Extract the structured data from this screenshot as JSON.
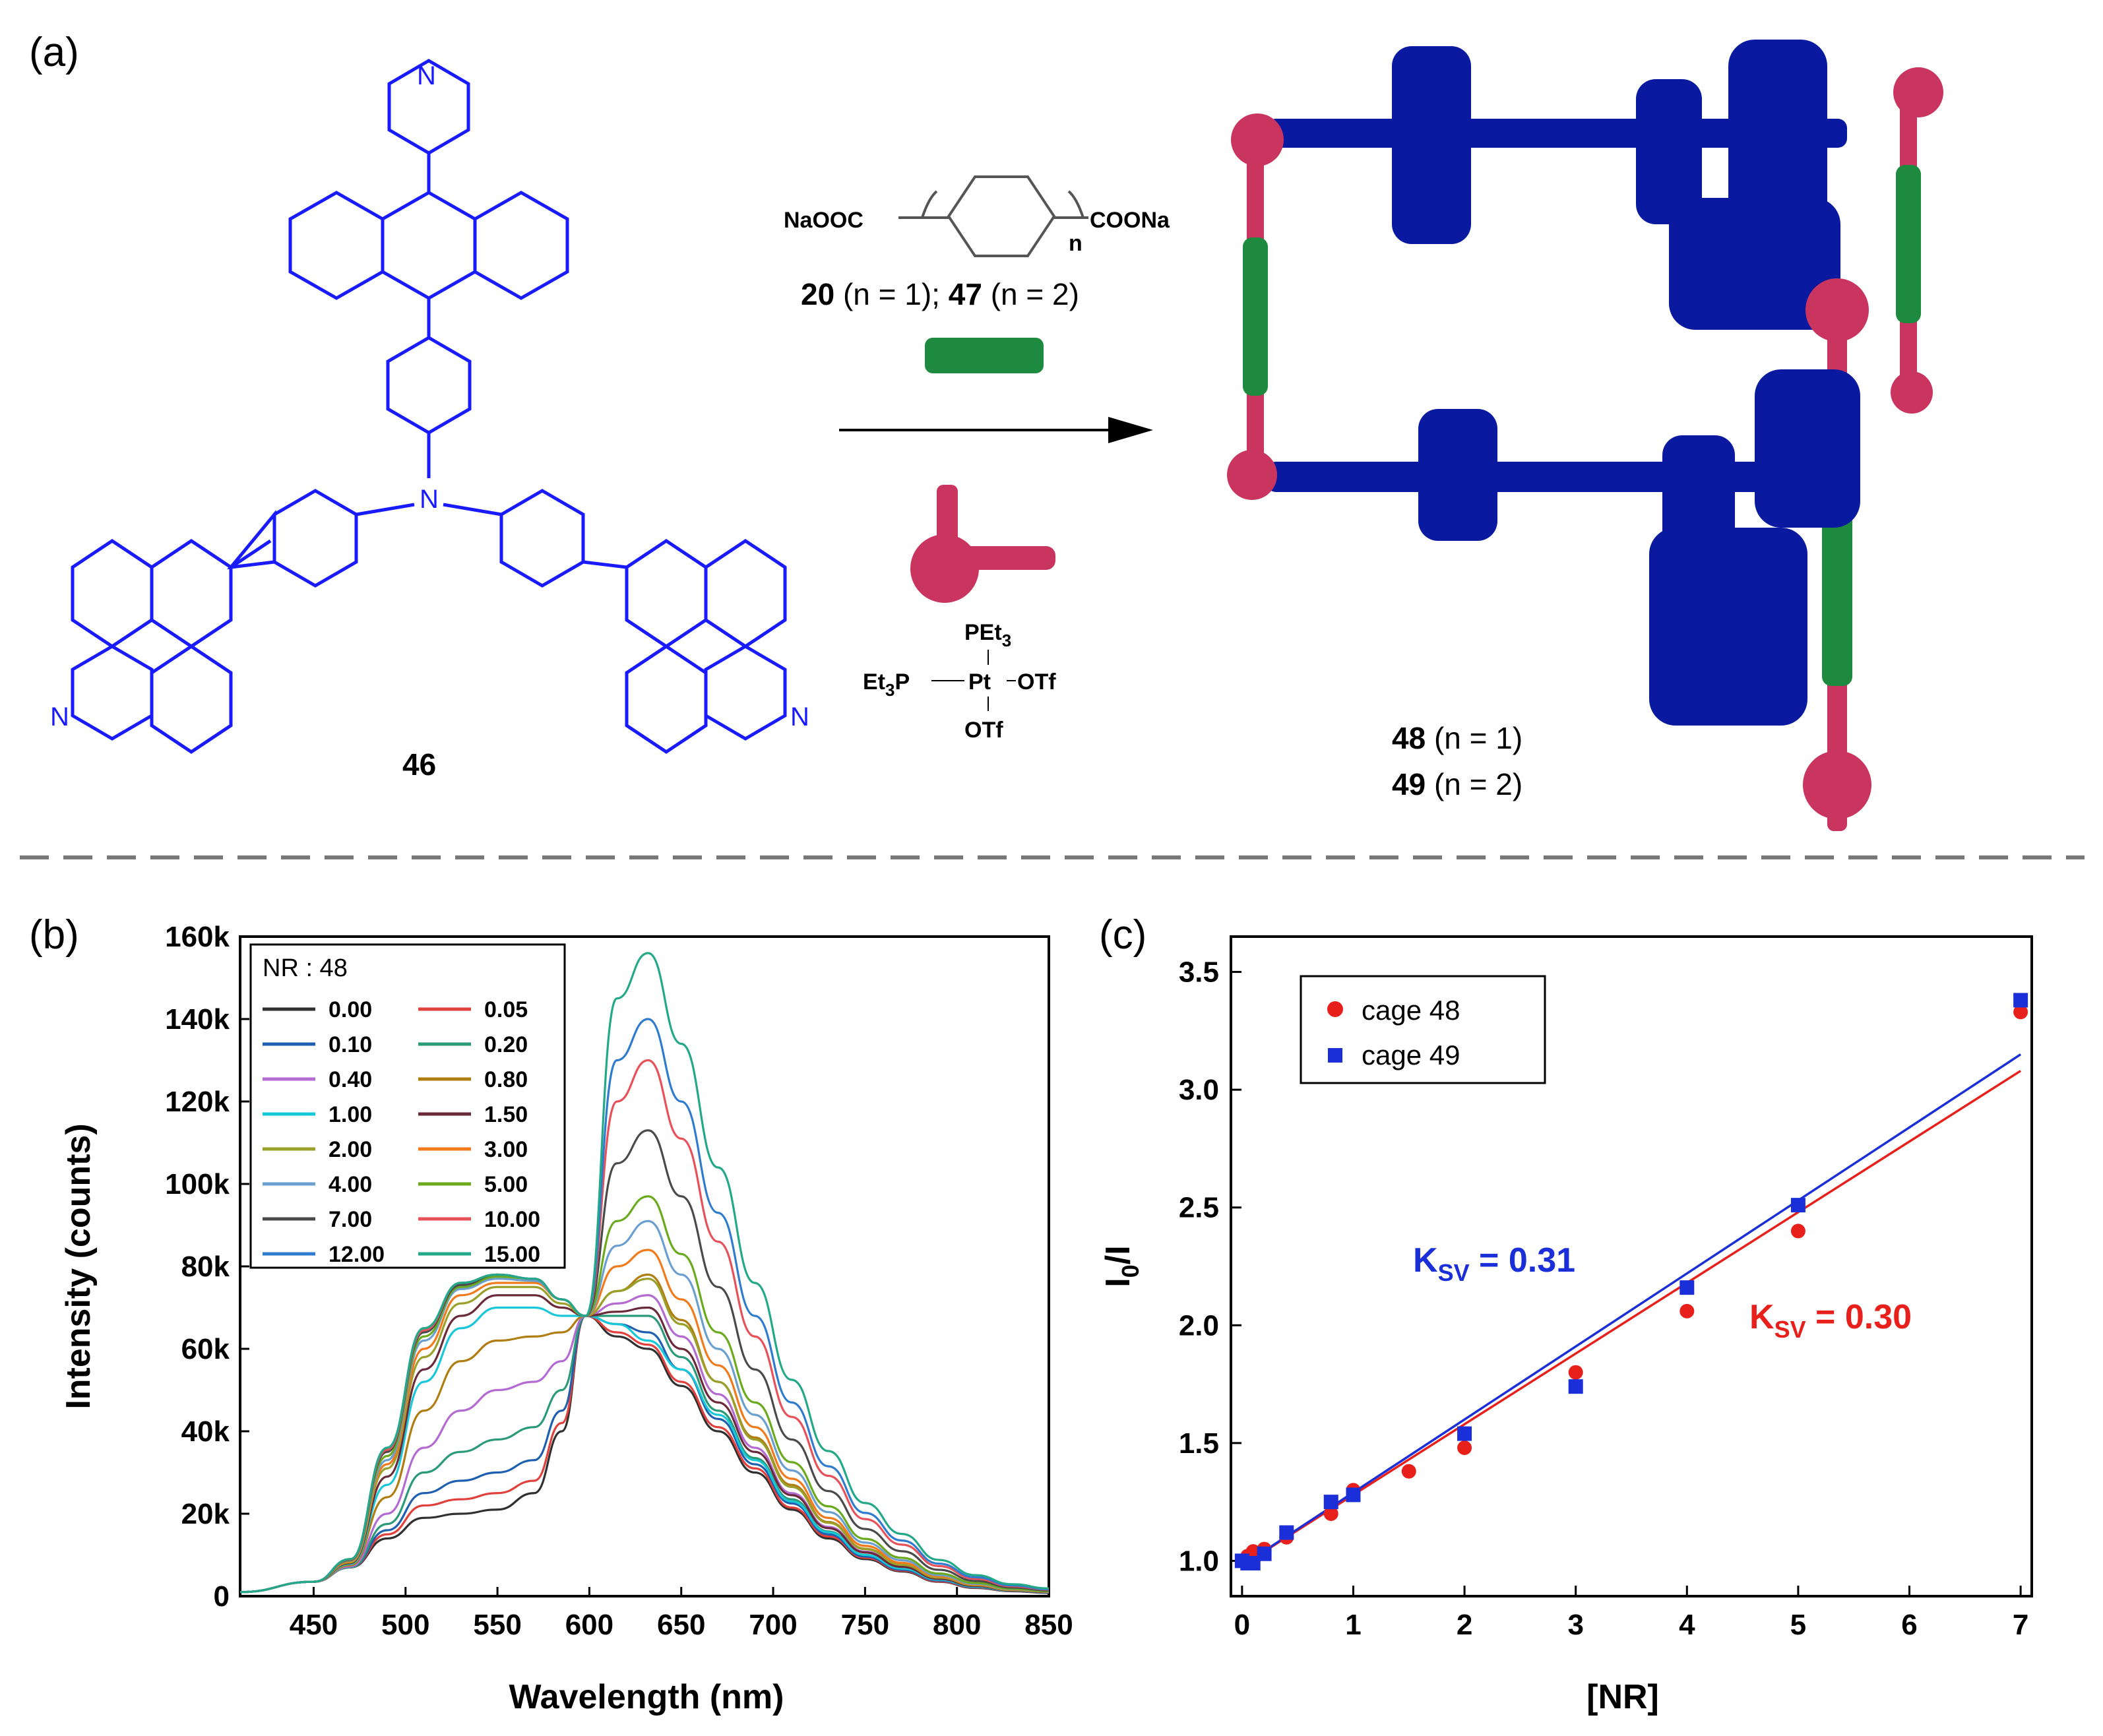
{
  "panels": {
    "a": "(a)",
    "b": "(b)",
    "c": "(c)"
  },
  "scheme": {
    "ligand_label": "46",
    "reagent_formula_left": "NaOOC",
    "reagent_formula_right": "COONa",
    "reagent_subscript": "n",
    "reagent_id_1": "20",
    "reagent_cond_1": " (n = 1); ",
    "reagent_id_2": "47",
    "reagent_cond_2": " (n = 2)",
    "pt_top": "PEt",
    "pt_top_sub": "3",
    "pt_left": "Et",
    "pt_left_sub": "3",
    "pt_left_tail": "P",
    "pt_center": "Pt",
    "pt_right": "OTf",
    "pt_bottom": "OTf",
    "product_id_1": "48",
    "product_cond_1": " (n = 1)",
    "product_id_2": "49",
    "product_cond_2": " (n = 2)",
    "atom_N": "N",
    "colors": {
      "ligand": "#1a1aff",
      "cage_blue": "#0a1aa0",
      "cage_green": "#1d8a3f",
      "cage_pink": "#c9355f"
    }
  },
  "chart_data": [
    {
      "type": "line",
      "panel": "(b)",
      "xlabel": "Wavelength (nm)",
      "ylabel": "Intensity (counts)",
      "xlim": [
        410,
        850
      ],
      "ylim": [
        0,
        160000
      ],
      "x_ticks": [
        "450",
        "500",
        "550",
        "600",
        "650",
        "700",
        "750",
        "800",
        "850"
      ],
      "y_ticks": [
        "0",
        "20k",
        "40k",
        "60k",
        "80k",
        "100k",
        "120k",
        "140k",
        "160k"
      ],
      "legend_title": "NR : 48",
      "legend_placement": "top-left",
      "isosbestic_point": [
        598,
        68000
      ],
      "x": [
        410,
        450,
        470,
        490,
        510,
        530,
        550,
        570,
        585,
        598,
        615,
        632,
        650,
        670,
        690,
        710,
        730,
        750,
        770,
        790,
        810,
        830,
        850
      ],
      "series": [
        {
          "name": "0.00",
          "color": "#303030",
          "values": [
            1000,
            3500,
            7000,
            14000,
            19000,
            20000,
            21000,
            25000,
            40000,
            68000,
            63000,
            60000,
            51000,
            40000,
            30000,
            21000,
            14000,
            9000,
            6000,
            3500,
            2000,
            1200,
            800
          ]
        },
        {
          "name": "0.05",
          "color": "#e0413c",
          "values": [
            1000,
            3500,
            7000,
            15000,
            22000,
            23500,
            25000,
            28000,
            42000,
            68000,
            64000,
            61000,
            52000,
            41000,
            31000,
            21500,
            14500,
            9300,
            6200,
            3600,
            2100,
            1250,
            850
          ]
        },
        {
          "name": "0.10",
          "color": "#1f5fb0",
          "values": [
            1000,
            3500,
            7000,
            16000,
            25000,
            28000,
            30000,
            33000,
            45000,
            68000,
            66000,
            64000,
            55000,
            43000,
            32000,
            22500,
            15000,
            9600,
            6400,
            3800,
            2200,
            1300,
            900
          ]
        },
        {
          "name": "0.20",
          "color": "#2a9a78",
          "values": [
            1000,
            3500,
            7000,
            17500,
            30000,
            35000,
            38000,
            41000,
            50000,
            68000,
            68000,
            68000,
            58000,
            45000,
            33500,
            23500,
            15700,
            10000,
            6700,
            4000,
            2300,
            1350,
            950
          ]
        },
        {
          "name": "0.40",
          "color": "#b36ad1",
          "values": [
            1000,
            3500,
            7200,
            20000,
            36000,
            45000,
            50000,
            52000,
            57000,
            68000,
            71000,
            73000,
            63000,
            49000,
            36000,
            25000,
            16800,
            10800,
            7200,
            4300,
            2500,
            1450,
            1000
          ]
        },
        {
          "name": "0.80",
          "color": "#b07d10",
          "values": [
            1000,
            3500,
            7500,
            24000,
            45000,
            57000,
            62000,
            63000,
            64000,
            68000,
            74000,
            78000,
            67000,
            52000,
            38500,
            27000,
            18000,
            11500,
            7700,
            4600,
            2700,
            1550,
            1050
          ]
        },
        {
          "name": "1.00",
          "color": "#18c8d8",
          "values": [
            1000,
            3500,
            7800,
            27000,
            52000,
            65000,
            70000,
            70000,
            68000,
            68000,
            66000,
            62000,
            55000,
            44000,
            33000,
            23000,
            15500,
            10000,
            6700,
            4000,
            2300,
            1350,
            950
          ]
        },
        {
          "name": "1.50",
          "color": "#6b2a3a",
          "values": [
            1000,
            3500,
            8000,
            29000,
            55000,
            68000,
            73000,
            73000,
            70000,
            68000,
            69000,
            70000,
            60000,
            47000,
            35000,
            24500,
            16500,
            10600,
            7100,
            4200,
            2450,
            1400,
            1000
          ]
        },
        {
          "name": "2.00",
          "color": "#9aa02a",
          "values": [
            1000,
            3500,
            8200,
            31000,
            58000,
            71000,
            75000,
            75000,
            71000,
            68000,
            74000,
            77000,
            66000,
            52000,
            38000,
            26500,
            17800,
            11400,
            7600,
            4500,
            2650,
            1500,
            1050
          ]
        },
        {
          "name": "3.00",
          "color": "#f07a1c",
          "values": [
            1000,
            3500,
            8400,
            32000,
            60000,
            73000,
            76000,
            76000,
            72000,
            68000,
            80000,
            84000,
            72000,
            56000,
            41000,
            28500,
            19000,
            12200,
            8100,
            4800,
            2800,
            1600,
            1100
          ]
        },
        {
          "name": "4.00",
          "color": "#6a9fd0",
          "values": [
            1000,
            3500,
            8600,
            33000,
            62000,
            74500,
            77000,
            76500,
            72000,
            68000,
            85000,
            91000,
            78000,
            60000,
            44000,
            30500,
            20400,
            13000,
            8700,
            5100,
            3000,
            1700,
            1150
          ]
        },
        {
          "name": "5.00",
          "color": "#6aaa1c",
          "values": [
            1000,
            3500,
            8700,
            34000,
            63000,
            75000,
            77500,
            77000,
            72000,
            68000,
            91000,
            97000,
            83000,
            64000,
            47000,
            32500,
            21800,
            13900,
            9300,
            5500,
            3200,
            1800,
            1200
          ]
        },
        {
          "name": "7.00",
          "color": "#4a4a4a",
          "values": [
            1000,
            3500,
            8800,
            35000,
            64000,
            75500,
            78000,
            77000,
            72000,
            68000,
            105000,
            113000,
            97000,
            75000,
            55000,
            38000,
            25500,
            16300,
            10900,
            6400,
            3700,
            2100,
            1400
          ]
        },
        {
          "name": "10.00",
          "color": "#e8505a",
          "values": [
            1000,
            3500,
            8900,
            35500,
            64500,
            76000,
            78000,
            77000,
            72000,
            68000,
            120000,
            130000,
            111000,
            86000,
            63000,
            43500,
            29200,
            18700,
            12500,
            7300,
            4200,
            2400,
            1600
          ]
        },
        {
          "name": "12.00",
          "color": "#2f7ccf",
          "values": [
            1000,
            3500,
            9000,
            36000,
            65000,
            76000,
            78000,
            77000,
            72000,
            68000,
            130000,
            140000,
            120000,
            93000,
            68000,
            47000,
            31500,
            20200,
            13500,
            7900,
            4600,
            2600,
            1700
          ]
        },
        {
          "name": "15.00",
          "color": "#23a888",
          "values": [
            1000,
            3500,
            9000,
            36000,
            65000,
            76000,
            78000,
            77000,
            72000,
            68000,
            145000,
            156000,
            134000,
            104000,
            76000,
            52500,
            35200,
            22600,
            15100,
            8800,
            5100,
            2900,
            1900
          ]
        }
      ]
    },
    {
      "type": "scatter",
      "panel": "(c)",
      "xlabel": "[NR]",
      "ylabel": "I0/I",
      "ylabel_main": "I",
      "ylabel_sub": "0",
      "ylabel_tail": "/I",
      "xlim": [
        -0.1,
        7.1
      ],
      "ylim": [
        0.85,
        3.65
      ],
      "x_ticks": [
        "0",
        "1",
        "2",
        "3",
        "4",
        "5",
        "6",
        "7"
      ],
      "y_ticks": [
        "1.0",
        "1.5",
        "2.0",
        "2.5",
        "3.0",
        "3.5"
      ],
      "legend_placement": "top-left",
      "series": [
        {
          "name": "cage 48",
          "color": "#e8201c",
          "marker": "circle",
          "x": [
            0,
            0.05,
            0.1,
            0.2,
            0.4,
            0.8,
            1.0,
            1.5,
            2.0,
            3.0,
            4.0,
            5.0,
            7.0
          ],
          "y": [
            1.0,
            1.02,
            1.04,
            1.05,
            1.1,
            1.2,
            1.3,
            1.38,
            1.48,
            1.8,
            2.06,
            2.4,
            3.33
          ],
          "fit": {
            "slope": 0.3,
            "intercept": 0.98
          },
          "annotation_main": "K",
          "annotation_sub": "SV",
          "annotation_tail": " = 0.30"
        },
        {
          "name": "cage 49",
          "color": "#1a2fd8",
          "marker": "square",
          "x": [
            0,
            0.05,
            0.1,
            0.2,
            0.4,
            0.8,
            1.0,
            2.0,
            3.0,
            4.0,
            5.0,
            7.0
          ],
          "y": [
            1.0,
            0.99,
            0.99,
            1.03,
            1.12,
            1.25,
            1.28,
            1.54,
            1.74,
            2.16,
            2.51,
            3.38
          ],
          "fit": {
            "slope": 0.31,
            "intercept": 0.98
          },
          "annotation_main": "K",
          "annotation_sub": "SV",
          "annotation_tail": " = 0.31"
        }
      ]
    }
  ]
}
